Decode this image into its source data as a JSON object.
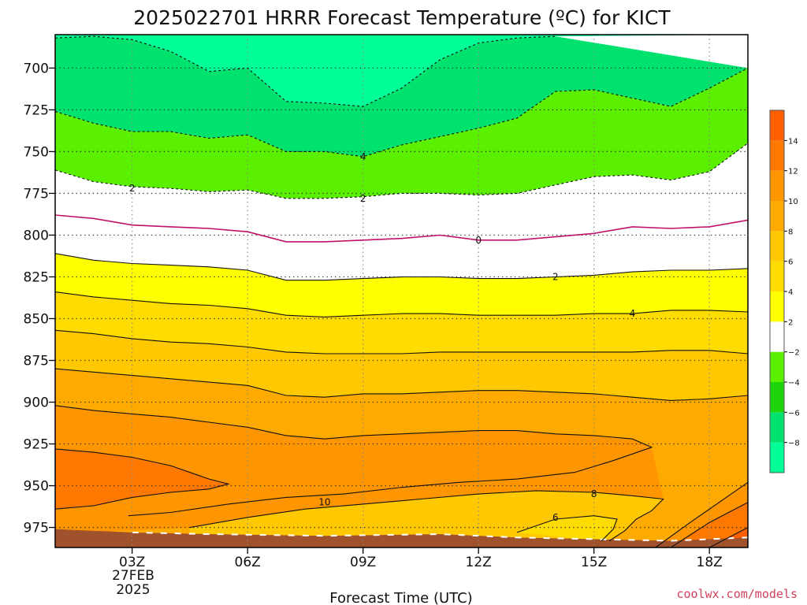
{
  "chart_data": {
    "type": "heatmap",
    "title": "2025022701 HRRR Forecast Temperature (ºC) for KICT",
    "xlabel": "Forecast Time (UTC)",
    "ylabel": "",
    "x_hours_utc": [
      1,
      19
    ],
    "y_pressure_hpa": [
      680,
      987
    ],
    "y_ticks": [
      "700",
      "725",
      "750",
      "775",
      "800",
      "825",
      "850",
      "875",
      "900",
      "925",
      "950",
      "975"
    ],
    "x_ticks": [
      {
        "hour": 3,
        "label": "03Z"
      },
      {
        "hour": 6,
        "label": "06Z"
      },
      {
        "hour": 9,
        "label": "09Z"
      },
      {
        "hour": 12,
        "label": "12Z"
      },
      {
        "hour": 15,
        "label": "15Z"
      },
      {
        "hour": 18,
        "label": "18Z"
      }
    ],
    "x_sub_labels": [
      "27FEB",
      "2025"
    ],
    "grid": true,
    "colorbar": {
      "ticks": [
        "14",
        "12",
        "10",
        "8",
        "6",
        "4",
        "2",
        "−2",
        "−4",
        "−6",
        "−8"
      ],
      "levels": [
        -10,
        -8,
        -6,
        -4,
        -2,
        2,
        4,
        6,
        8,
        10,
        12,
        14,
        16
      ],
      "colors": [
        "#00ff96",
        "#00e26e",
        "#1ed40a",
        "#5af000",
        "#ffffff",
        "#ffff00",
        "#ffdc00",
        "#ffc800",
        "#ffaa00",
        "#ff9600",
        "#ff7800",
        "#ff5f00"
      ]
    },
    "contours": [
      {
        "level": -6,
        "label": "",
        "points": [
          [
            1.0,
            682
          ],
          [
            2.0,
            681
          ],
          [
            3.0,
            683
          ],
          [
            4.0,
            690
          ],
          [
            5.0,
            702
          ],
          [
            6.0,
            700
          ],
          [
            7.0,
            720
          ],
          [
            8.0,
            721
          ],
          [
            9.0,
            723
          ],
          [
            10.0,
            712
          ],
          [
            11.0,
            695
          ],
          [
            12.0,
            685
          ],
          [
            13.0,
            682
          ],
          [
            14.0,
            681
          ]
        ]
      },
      {
        "level": -4,
        "label": "",
        "points": [
          [
            1.0,
            726
          ],
          [
            2.0,
            733
          ],
          [
            3.0,
            738
          ],
          [
            4.0,
            738
          ],
          [
            5.0,
            742
          ],
          [
            6.0,
            740
          ],
          [
            7.0,
            750
          ],
          [
            8.0,
            750
          ],
          [
            9.0,
            753
          ],
          [
            10.0,
            746
          ],
          [
            11.0,
            741
          ],
          [
            12.0,
            736
          ],
          [
            13.0,
            730
          ],
          [
            14.0,
            714
          ],
          [
            15.0,
            713
          ],
          [
            16.0,
            718
          ],
          [
            17.0,
            723
          ],
          [
            18.0,
            712
          ],
          [
            19.0,
            700
          ]
        ]
      },
      {
        "level": -4,
        "label": "4",
        "labelAt": [
          9.0,
          753
        ],
        "points": []
      },
      {
        "level": -2,
        "label": "2",
        "labelAt": [
          3.0,
          772
        ],
        "points": [
          [
            1.0,
            761
          ],
          [
            2.0,
            768
          ],
          [
            3.0,
            771
          ],
          [
            4.0,
            772
          ],
          [
            5.0,
            774
          ],
          [
            6.0,
            773
          ],
          [
            7.0,
            778
          ],
          [
            8.0,
            778
          ],
          [
            9.0,
            777
          ],
          [
            10.0,
            775
          ],
          [
            11.0,
            775
          ],
          [
            12.0,
            776
          ],
          [
            13.0,
            775
          ],
          [
            14.0,
            770
          ],
          [
            15.0,
            765
          ],
          [
            16.0,
            764
          ],
          [
            17.0,
            767
          ],
          [
            18.0,
            762
          ],
          [
            19.0,
            745
          ]
        ]
      },
      {
        "level": -2,
        "label": "2",
        "labelAt": [
          9.0,
          778
        ],
        "points": []
      },
      {
        "level": 0,
        "label": "0",
        "labelAt": [
          12.0,
          803
        ],
        "points": [
          [
            1.0,
            788
          ],
          [
            2.0,
            790
          ],
          [
            3.0,
            794
          ],
          [
            4.0,
            795
          ],
          [
            5.0,
            796
          ],
          [
            6.0,
            798
          ],
          [
            7.0,
            804
          ],
          [
            8.0,
            804
          ],
          [
            9.0,
            803
          ],
          [
            10.0,
            802
          ],
          [
            11.0,
            800
          ],
          [
            12.0,
            803
          ],
          [
            13.0,
            803
          ],
          [
            14.0,
            801
          ],
          [
            15.0,
            799
          ],
          [
            16.0,
            795
          ],
          [
            17.0,
            796
          ],
          [
            18.0,
            795
          ],
          [
            19.0,
            791
          ]
        ]
      },
      {
        "level": 2,
        "label": "2",
        "labelAt": [
          14.0,
          825
        ],
        "points": [
          [
            1.0,
            811
          ],
          [
            2.0,
            815
          ],
          [
            3.0,
            817
          ],
          [
            4.0,
            818
          ],
          [
            5.0,
            819
          ],
          [
            6.0,
            821
          ],
          [
            7.0,
            827
          ],
          [
            8.0,
            827
          ],
          [
            9.0,
            826
          ],
          [
            10.0,
            825
          ],
          [
            11.0,
            825
          ],
          [
            12.0,
            826
          ],
          [
            13.0,
            826
          ],
          [
            14.0,
            825
          ],
          [
            15.0,
            824
          ],
          [
            16.0,
            822
          ],
          [
            17.0,
            821
          ],
          [
            18.0,
            821
          ],
          [
            19.0,
            820
          ]
        ]
      },
      {
        "level": 4,
        "label": "4",
        "labelAt": [
          16.0,
          847
        ],
        "points": [
          [
            1.0,
            834
          ],
          [
            2.0,
            837
          ],
          [
            3.0,
            839
          ],
          [
            4.0,
            841
          ],
          [
            5.0,
            842
          ],
          [
            6.0,
            844
          ],
          [
            7.0,
            848
          ],
          [
            8.0,
            849
          ],
          [
            9.0,
            848
          ],
          [
            10.0,
            847
          ],
          [
            11.0,
            847
          ],
          [
            12.0,
            848
          ],
          [
            13.0,
            848
          ],
          [
            14.0,
            848
          ],
          [
            15.0,
            847
          ],
          [
            16.0,
            847
          ],
          [
            17.0,
            845
          ],
          [
            18.0,
            845
          ],
          [
            19.0,
            846
          ]
        ]
      },
      {
        "level": 6,
        "label": "",
        "points": [
          [
            1.0,
            857
          ],
          [
            2.0,
            859
          ],
          [
            3.0,
            862
          ],
          [
            4.0,
            864
          ],
          [
            5.0,
            865
          ],
          [
            6.0,
            867
          ],
          [
            7.0,
            870
          ],
          [
            8.0,
            871
          ],
          [
            9.0,
            871
          ],
          [
            10.0,
            871
          ],
          [
            11.0,
            870
          ],
          [
            12.0,
            870
          ],
          [
            13.0,
            870
          ],
          [
            14.0,
            870
          ],
          [
            15.0,
            870
          ],
          [
            16.0,
            870
          ],
          [
            17.0,
            869
          ],
          [
            18.0,
            869
          ],
          [
            19.0,
            871
          ]
        ]
      },
      {
        "level": 8,
        "label": "",
        "points": [
          [
            1.0,
            880
          ],
          [
            2.0,
            882
          ],
          [
            3.0,
            884
          ],
          [
            4.0,
            886
          ],
          [
            5.0,
            888
          ],
          [
            6.0,
            890
          ],
          [
            7.0,
            896
          ],
          [
            8.0,
            897
          ],
          [
            9.0,
            895
          ],
          [
            10.0,
            895
          ],
          [
            11.0,
            894
          ],
          [
            12.0,
            893
          ],
          [
            13.0,
            893
          ],
          [
            14.0,
            894
          ],
          [
            15.0,
            895
          ],
          [
            16.0,
            897
          ],
          [
            17.0,
            899
          ],
          [
            18.0,
            898
          ],
          [
            19.0,
            896
          ]
        ]
      },
      {
        "level": 10,
        "label": "",
        "points": [
          [
            1.0,
            902
          ],
          [
            2.0,
            905
          ],
          [
            3.0,
            907
          ],
          [
            4.0,
            909
          ],
          [
            5.0,
            912
          ],
          [
            6.0,
            915
          ],
          [
            7.0,
            920
          ],
          [
            8.0,
            922
          ],
          [
            9.0,
            920
          ],
          [
            10.0,
            919
          ],
          [
            11.0,
            918
          ],
          [
            12.0,
            917
          ],
          [
            13.0,
            917
          ],
          [
            14.0,
            919
          ],
          [
            15.0,
            920
          ],
          [
            16.0,
            922
          ],
          [
            16.5,
            927
          ],
          [
            15.5,
            935
          ],
          [
            14.5,
            942
          ],
          [
            13.0,
            946
          ],
          [
            11.5,
            948
          ],
          [
            10.0,
            951
          ],
          [
            8.5,
            955
          ],
          [
            7.0,
            957
          ],
          [
            5.5,
            961
          ],
          [
            4.0,
            966
          ],
          [
            2.9,
            968
          ]
        ]
      },
      {
        "level": 10,
        "label": "10",
        "labelAt": [
          8.0,
          960
        ],
        "points": []
      },
      {
        "level": 12,
        "label": "",
        "points": [
          [
            1.0,
            928
          ],
          [
            2.0,
            930
          ],
          [
            3.0,
            933
          ],
          [
            4.0,
            938
          ],
          [
            5.0,
            946
          ],
          [
            5.5,
            949
          ],
          [
            5.0,
            952
          ],
          [
            4.0,
            954
          ],
          [
            3.0,
            957
          ],
          [
            2.0,
            962
          ],
          [
            1.0,
            964
          ]
        ]
      },
      {
        "level": 8,
        "label": "8",
        "labelAt": [
          15.0,
          955
        ],
        "points": [
          [
            4.5,
            975
          ],
          [
            6.0,
            969
          ],
          [
            7.5,
            964
          ],
          [
            9.0,
            961
          ],
          [
            10.5,
            958
          ],
          [
            12.0,
            955
          ],
          [
            13.5,
            953
          ],
          [
            15.0,
            954
          ],
          [
            16.0,
            956
          ],
          [
            16.8,
            958
          ],
          [
            16.5,
            965
          ],
          [
            16.1,
            970
          ],
          [
            15.8,
            977
          ],
          [
            15.4,
            983
          ]
        ]
      },
      {
        "level": 6,
        "label": "6",
        "labelAt": [
          14.0,
          969
        ],
        "points": [
          [
            13.0,
            978
          ],
          [
            14.0,
            970
          ],
          [
            15.0,
            968
          ],
          [
            15.6,
            970
          ],
          [
            15.5,
            976
          ],
          [
            15.2,
            983
          ]
        ]
      },
      {
        "level": 10,
        "label": "",
        "points": [
          [
            16.6,
            987
          ],
          [
            17.5,
            972
          ],
          [
            18.5,
            956
          ],
          [
            19.0,
            948
          ]
        ]
      },
      {
        "level": 12,
        "label": "",
        "points": [
          [
            17.0,
            987
          ],
          [
            18.0,
            972
          ],
          [
            19.0,
            960
          ]
        ]
      },
      {
        "level": 14,
        "label": "",
        "points": [
          [
            18.0,
            987
          ],
          [
            19.0,
            975
          ]
        ]
      }
    ],
    "fills": [
      {
        "color": "#00ff96",
        "top": [
          [
            1.0,
            680
          ],
          [
            19.0,
            680
          ]
        ],
        "bottom": "c:-6"
      },
      {
        "color": "#00e26e",
        "between": [
          "c:-6",
          "c:-4"
        ]
      },
      {
        "color": "#5af000",
        "between": [
          "c:-4",
          "c:-2"
        ]
      }
    ]
  },
  "credit": "coolwx.com/models"
}
